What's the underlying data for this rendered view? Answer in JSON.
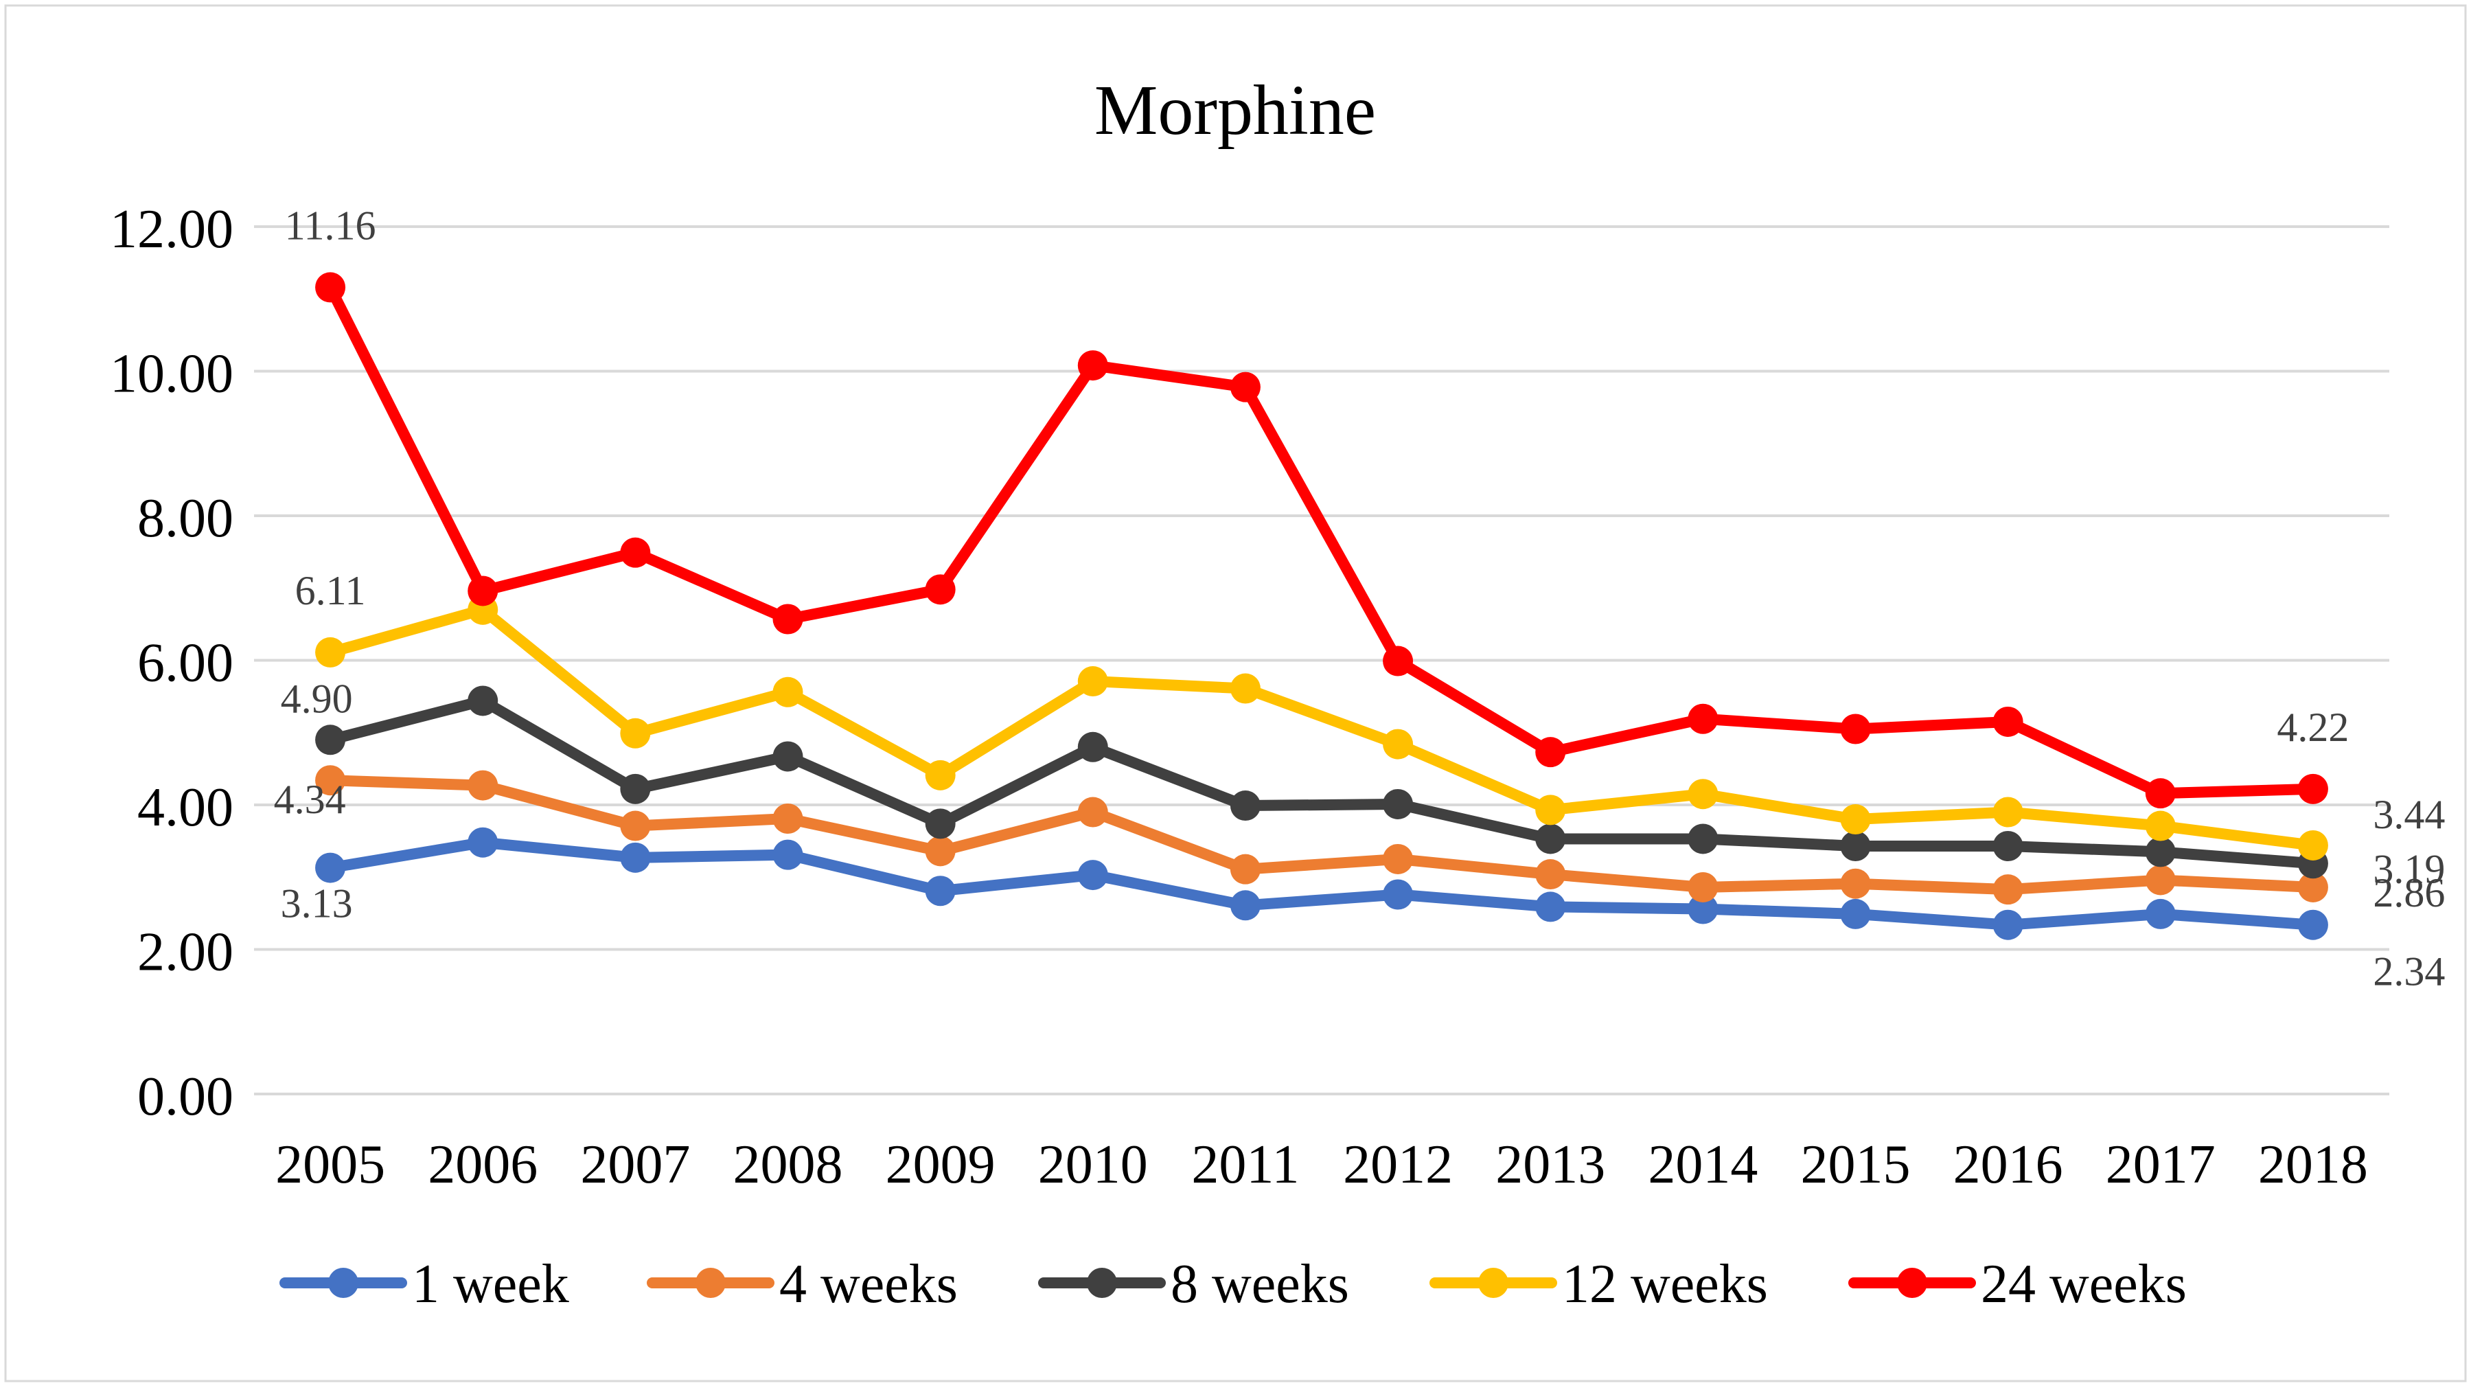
{
  "chart_data": {
    "type": "line",
    "title": "Morphine",
    "xlabel": "",
    "ylabel": "",
    "ylim": [
      0,
      12
    ],
    "yticks": [
      "0.00",
      "2.00",
      "4.00",
      "6.00",
      "8.00",
      "10.00",
      "12.00"
    ],
    "categories": [
      "2005",
      "2006",
      "2007",
      "2008",
      "2009",
      "2010",
      "2011",
      "2012",
      "2013",
      "2014",
      "2015",
      "2016",
      "2017",
      "2018"
    ],
    "grid": true,
    "legend_position": "bottom",
    "series": [
      {
        "name": "1 week",
        "color": "#4472C4",
        "values": [
          3.13,
          3.48,
          3.27,
          3.31,
          2.81,
          3.03,
          2.61,
          2.76,
          2.59,
          2.56,
          2.49,
          2.34,
          2.49,
          2.34
        ],
        "labels": [
          {
            "index": 0,
            "text": "3.13",
            "anchor": "below"
          },
          {
            "index": 13,
            "text": "2.34",
            "anchor": "below-right"
          }
        ]
      },
      {
        "name": "4 weeks",
        "color": "#ED7D31",
        "values": [
          4.34,
          4.27,
          3.71,
          3.81,
          3.36,
          3.9,
          3.11,
          3.25,
          3.04,
          2.86,
          2.91,
          2.83,
          2.96,
          2.86
        ],
        "labels": [
          {
            "index": 0,
            "text": "4.34",
            "anchor": "below-left"
          },
          {
            "index": 13,
            "text": "2.86",
            "anchor": "right"
          }
        ]
      },
      {
        "name": "8 weeks",
        "color": "#404040",
        "values": [
          4.9,
          5.44,
          4.22,
          4.67,
          3.74,
          4.8,
          3.99,
          4.01,
          3.53,
          3.53,
          3.43,
          3.43,
          3.35,
          3.19
        ],
        "labels": [
          {
            "index": 0,
            "text": "4.90",
            "anchor": "above-left"
          },
          {
            "index": 13,
            "text": "3.19",
            "anchor": "right"
          }
        ]
      },
      {
        "name": "12 weeks",
        "color": "#FFC000",
        "values": [
          6.11,
          6.7,
          4.99,
          5.56,
          4.41,
          5.71,
          5.61,
          4.84,
          3.93,
          4.15,
          3.8,
          3.9,
          3.71,
          3.44
        ],
        "labels": [
          {
            "index": 0,
            "text": "6.11",
            "anchor": "above"
          },
          {
            "index": 13,
            "text": "3.44",
            "anchor": "right-up"
          }
        ]
      },
      {
        "name": "24 weeks",
        "color": "#FF0000",
        "values": [
          11.16,
          6.96,
          7.49,
          6.57,
          6.98,
          10.08,
          9.78,
          5.99,
          4.73,
          5.19,
          5.05,
          5.15,
          4.16,
          4.22
        ],
        "labels": [
          {
            "index": 0,
            "text": "11.16",
            "anchor": "above"
          },
          {
            "index": 13,
            "text": "4.22",
            "anchor": "above"
          }
        ]
      }
    ]
  }
}
